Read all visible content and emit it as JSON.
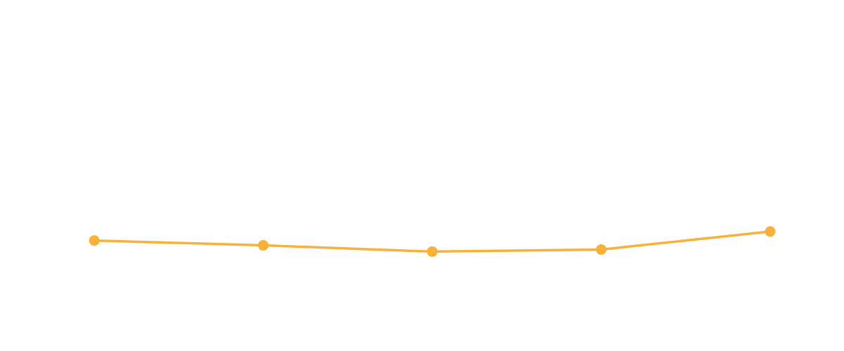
{
  "chart_data": {
    "type": "line",
    "categories": [
      "",
      "",
      "",
      "",
      ""
    ],
    "series": [
      {
        "values": [
          14.4,
          13.7,
          12.8,
          13.1,
          15.7
        ],
        "color": "#f9b13a"
      }
    ],
    "ylim": [
      0,
      45
    ],
    "grid": false,
    "legend": "none",
    "axes_visible": false
  }
}
